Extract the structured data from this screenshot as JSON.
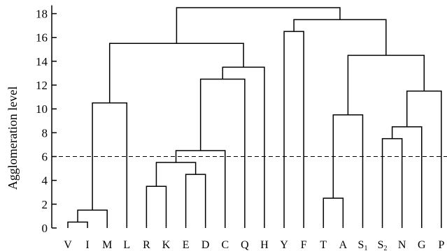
{
  "chart_data": {
    "type": "dendrogram",
    "title": "",
    "ylabel": "Agglomeration level",
    "xlabel": "",
    "ylim": [
      0,
      18.7
    ],
    "yticks": [
      0,
      2,
      4,
      6,
      8,
      10,
      12,
      14,
      16,
      18
    ],
    "threshold": 6,
    "grid": false,
    "leaves": [
      {
        "id": "V",
        "label": "V",
        "sub": ""
      },
      {
        "id": "I",
        "label": "I",
        "sub": ""
      },
      {
        "id": "M",
        "label": "M",
        "sub": ""
      },
      {
        "id": "L",
        "label": "L",
        "sub": ""
      },
      {
        "id": "R",
        "label": "R",
        "sub": ""
      },
      {
        "id": "K",
        "label": "K",
        "sub": ""
      },
      {
        "id": "E",
        "label": "E",
        "sub": ""
      },
      {
        "id": "D",
        "label": "D",
        "sub": ""
      },
      {
        "id": "C",
        "label": "C",
        "sub": ""
      },
      {
        "id": "Q",
        "label": "Q",
        "sub": ""
      },
      {
        "id": "H",
        "label": "H",
        "sub": ""
      },
      {
        "id": "Y",
        "label": "Y",
        "sub": ""
      },
      {
        "id": "F",
        "label": "F",
        "sub": ""
      },
      {
        "id": "T",
        "label": "T",
        "sub": ""
      },
      {
        "id": "A",
        "label": "A",
        "sub": ""
      },
      {
        "id": "S1",
        "label": "S",
        "sub": "1"
      },
      {
        "id": "S2",
        "label": "S",
        "sub": "2"
      },
      {
        "id": "N",
        "label": "N",
        "sub": ""
      },
      {
        "id": "G",
        "label": "G",
        "sub": ""
      },
      {
        "id": "P",
        "label": "P",
        "sub": ""
      }
    ],
    "merges": [
      {
        "id": "c1",
        "left": "V",
        "right": "I",
        "height": 0.5
      },
      {
        "id": "c2",
        "left": "c1",
        "right": "M",
        "height": 1.5
      },
      {
        "id": "c3",
        "left": "c2",
        "right": "L",
        "height": 10.5
      },
      {
        "id": "c4",
        "left": "R",
        "right": "K",
        "height": 3.5
      },
      {
        "id": "c5",
        "left": "E",
        "right": "D",
        "height": 4.5
      },
      {
        "id": "c6",
        "left": "c4",
        "right": "c5",
        "height": 5.5
      },
      {
        "id": "c7",
        "left": "c6",
        "right": "C",
        "height": 6.5
      },
      {
        "id": "c8",
        "left": "c7",
        "right": "Q",
        "height": 12.5
      },
      {
        "id": "c9",
        "left": "c8",
        "right": "H",
        "height": 13.5
      },
      {
        "id": "c10",
        "left": "c3",
        "right": "c9",
        "height": 15.5
      },
      {
        "id": "c11",
        "left": "Y",
        "right": "F",
        "height": 16.5
      },
      {
        "id": "c12",
        "left": "T",
        "right": "A",
        "height": 2.5
      },
      {
        "id": "c13",
        "left": "c12",
        "right": "S1",
        "height": 9.5
      },
      {
        "id": "c14",
        "left": "S2",
        "right": "N",
        "height": 7.5
      },
      {
        "id": "c15",
        "left": "c14",
        "right": "G",
        "height": 8.5
      },
      {
        "id": "c16",
        "left": "c15",
        "right": "P",
        "height": 11.5
      },
      {
        "id": "c17",
        "left": "c13",
        "right": "c16",
        "height": 14.5
      },
      {
        "id": "c18",
        "left": "c11",
        "right": "c17",
        "height": 17.5
      },
      {
        "id": "c19",
        "left": "c10",
        "right": "c18",
        "height": 18.5
      }
    ]
  }
}
